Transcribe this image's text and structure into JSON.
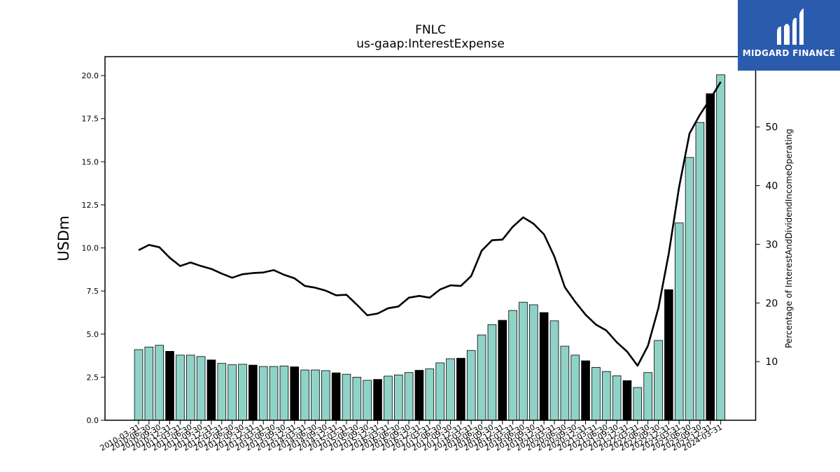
{
  "chart_data": {
    "type": "bar",
    "title": "FNLC",
    "subtitle": "us-gaap:InterestExpense",
    "ylabel": "USDm",
    "y2label": "Percentage of InterestAndDividendIncomeOperating",
    "ylim": [
      0,
      21.1
    ],
    "y2lim": [
      0,
      62
    ],
    "yticks": [
      "0.0",
      "2.5",
      "5.0",
      "7.5",
      "10.0",
      "12.5",
      "15.0",
      "17.5",
      "20.0"
    ],
    "y2ticks": [
      "10",
      "20",
      "30",
      "40",
      "50"
    ],
    "bar_colors": {
      "quarter": "#8fd3c8",
      "year_end": "#000000"
    },
    "categories": [
      "2010-03-31",
      "2010-06-30",
      "2010-09-30",
      "2010-12-31",
      "2011-03-31",
      "2011-06-30",
      "2011-09-30",
      "2011-12-31",
      "2012-03-31",
      "2012-06-30",
      "2012-09-30",
      "2012-12-31",
      "2013-03-31",
      "2013-06-30",
      "2013-09-30",
      "2013-12-31",
      "2014-03-31",
      "2014-06-30",
      "2014-09-30",
      "2014-12-31",
      "2015-03-31",
      "2015-06-30",
      "2015-09-30",
      "2015-12-31",
      "2016-03-31",
      "2016-06-30",
      "2016-09-30",
      "2016-12-31",
      "2017-03-31",
      "2017-06-30",
      "2017-09-30",
      "2017-12-31",
      "2018-03-31",
      "2018-06-30",
      "2018-09-30",
      "2018-12-31",
      "2019-03-31",
      "2019-06-30",
      "2019-09-30",
      "2019-12-31",
      "2020-03-31",
      "2020-06-30",
      "2020-09-30",
      "2020-12-31",
      "2021-03-31",
      "2021-06-30",
      "2021-09-30",
      "2021-12-31",
      "2022-03-31",
      "2022-06-30",
      "2022-09-30",
      "2022-12-31",
      "2023-03-31",
      "2023-06-30",
      "2023-09-30",
      "2023-12-31",
      "2024-03-31"
    ],
    "series": [
      {
        "kind": "bar",
        "values": [
          4.1,
          4.25,
          4.35,
          4.0,
          3.78,
          3.78,
          3.7,
          3.5,
          3.3,
          3.22,
          3.25,
          3.2,
          3.12,
          3.12,
          3.15,
          3.1,
          2.92,
          2.92,
          2.88,
          2.75,
          2.67,
          2.5,
          2.32,
          2.37,
          2.56,
          2.63,
          2.77,
          2.9,
          2.98,
          3.33,
          3.57,
          3.6,
          4.05,
          4.95,
          5.55,
          5.8,
          6.37,
          6.85,
          6.7,
          6.25,
          5.77,
          4.3,
          3.78,
          3.45,
          3.07,
          2.83,
          2.58,
          2.3,
          1.9,
          2.77,
          4.63,
          7.58,
          11.45,
          15.25,
          17.28,
          18.95,
          20.05
        ],
        "highlight": [
          false,
          false,
          false,
          true,
          false,
          false,
          false,
          true,
          false,
          false,
          false,
          true,
          false,
          false,
          false,
          true,
          false,
          false,
          false,
          true,
          false,
          false,
          false,
          true,
          false,
          false,
          false,
          true,
          false,
          false,
          false,
          true,
          false,
          false,
          false,
          true,
          false,
          false,
          false,
          true,
          false,
          false,
          false,
          true,
          false,
          false,
          false,
          true,
          false,
          false,
          false,
          true,
          false,
          false,
          false,
          true,
          false
        ]
      },
      {
        "kind": "line",
        "axis": "right",
        "values": [
          29.0,
          29.9,
          29.5,
          27.7,
          26.3,
          26.9,
          26.3,
          25.8,
          25.0,
          24.3,
          24.9,
          25.1,
          25.2,
          25.6,
          24.8,
          24.2,
          22.9,
          22.6,
          22.1,
          21.3,
          21.4,
          19.7,
          17.9,
          18.2,
          19.1,
          19.4,
          20.9,
          21.2,
          20.9,
          22.3,
          23.0,
          22.9,
          24.6,
          28.9,
          30.7,
          30.8,
          33.0,
          34.6,
          33.5,
          31.7,
          27.9,
          22.7,
          20.2,
          18.0,
          16.3,
          15.3,
          13.3,
          11.7,
          9.3,
          12.7,
          19.1,
          28.4,
          39.8,
          48.9,
          52.1,
          54.8,
          57.7
        ]
      }
    ]
  },
  "brand": {
    "name": "MIDGARD FINANCE",
    "icon": "midgard-logo-icon",
    "color": "#2b5bad"
  }
}
